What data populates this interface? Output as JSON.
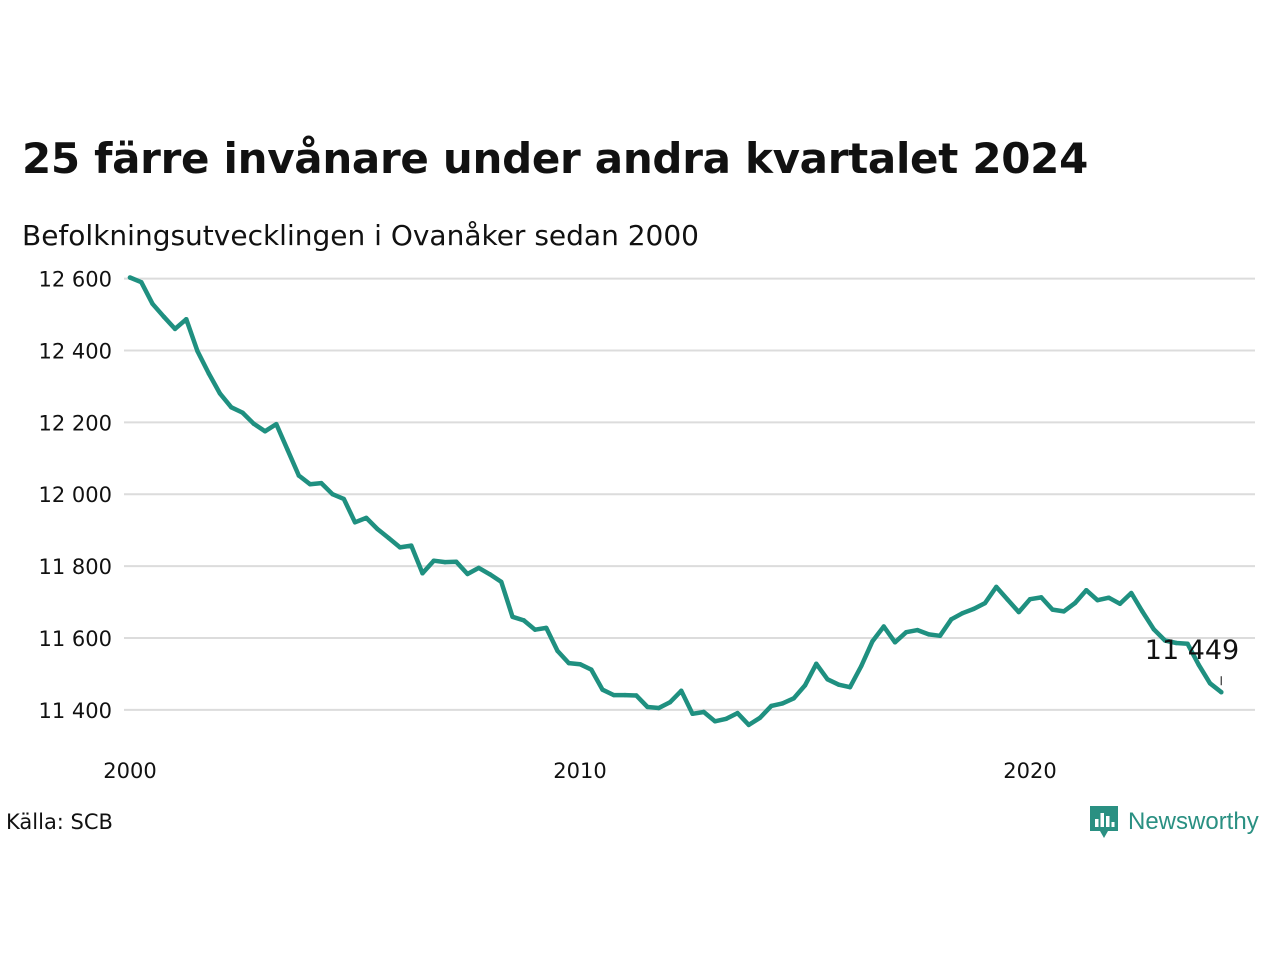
{
  "brand": {
    "name": "Newsworthy",
    "icon": "newsworthy-logo-icon",
    "color": "#2a9082"
  },
  "source_text": "Källa: SCB",
  "chart_data": {
    "type": "line",
    "title": "25 färre invånare under andra kvartalet 2024",
    "subtitle": "Befolkningsutvecklingen i Ovanåker sedan 2000",
    "xlabel": "",
    "ylabel": "",
    "x_range": [
      2000,
      2025
    ],
    "x_ticks": [
      {
        "value": 2000,
        "label": "2000"
      },
      {
        "value": 2010,
        "label": "2010"
      },
      {
        "value": 2020,
        "label": "2020"
      }
    ],
    "ylim": [
      11330,
      12610
    ],
    "y_ticks": [
      {
        "value": 12600,
        "label": "12 600"
      },
      {
        "value": 12400,
        "label": "12 400"
      },
      {
        "value": 12200,
        "label": "12 200"
      },
      {
        "value": 12000,
        "label": "12 000"
      },
      {
        "value": 11800,
        "label": "11 800"
      },
      {
        "value": 11600,
        "label": "11 600"
      },
      {
        "value": 11400,
        "label": "11 400"
      }
    ],
    "grid": true,
    "line_color": "#1f9080",
    "end_label": "11 449",
    "series": [
      {
        "name": "",
        "start_year": 2000,
        "step": 0.25,
        "values": [
          12603,
          12590,
          12530,
          12494,
          12460,
          12487,
          12398,
          12336,
          12280,
          12242,
          12227,
          12196,
          12175,
          12195,
          12124,
          12052,
          12028,
          12031,
          12000,
          11987,
          11922,
          11934,
          11903,
          11878,
          11852,
          11857,
          11780,
          11815,
          11811,
          11812,
          11778,
          11795,
          11777,
          11756,
          11659,
          11649,
          11623,
          11628,
          11564,
          11530,
          11527,
          11512,
          11456,
          11441,
          11441,
          11440,
          11408,
          11405,
          11421,
          11453,
          11389,
          11394,
          11368,
          11375,
          11391,
          11358,
          11378,
          11411,
          11418,
          11432,
          11468,
          11528,
          11485,
          11470,
          11463,
          11522,
          11591,
          11632,
          11588,
          11616,
          11622,
          11610,
          11606,
          11652,
          11669,
          11681,
          11697,
          11742,
          11707,
          11672,
          11708,
          11713,
          11679,
          11674,
          11697,
          11733,
          11705,
          11712,
          11695,
          11725,
          11673,
          11624,
          11593,
          11586,
          11584,
          11525,
          11474,
          11449
        ]
      }
    ]
  }
}
